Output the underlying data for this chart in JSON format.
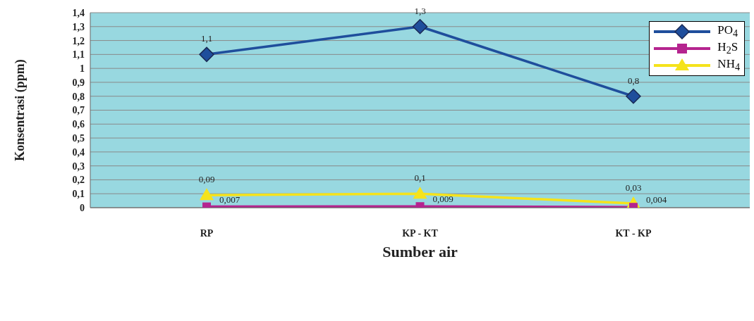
{
  "chart_data": {
    "type": "line",
    "xlabel": "Sumber air",
    "ylabel": "Konsentrasi (ppm)",
    "categories": [
      "RP",
      "KP - KT",
      "KT - KP"
    ],
    "series": [
      {
        "name": "PO$_{4}$",
        "color": "#1f4e9c",
        "marker": "diamond",
        "values": [
          1.1,
          1.3,
          0.8
        ],
        "value_labels": [
          "1,1",
          "1,3",
          "0,8"
        ]
      },
      {
        "name": "H$_{2}$S",
        "color": "#b5248f",
        "marker": "square",
        "values": [
          0.007,
          0.009,
          0.004
        ],
        "value_labels": [
          "0,007",
          "0,009",
          "0,004"
        ]
      },
      {
        "name": "NH$_{4}$",
        "color": "#f5e31c",
        "marker": "triangle",
        "values": [
          0.09,
          0.1,
          0.03
        ],
        "value_labels": [
          "0,09",
          "0,1",
          "0,03"
        ]
      }
    ],
    "ylim": [
      0,
      1.4
    ],
    "yticks": [
      {
        "value": 0,
        "label": "0"
      },
      {
        "value": 0.1,
        "label": "0,1"
      },
      {
        "value": 0.2,
        "label": "0,2"
      },
      {
        "value": 0.3,
        "label": "0,3"
      },
      {
        "value": 0.4,
        "label": "0,4"
      },
      {
        "value": 0.5,
        "label": "0,5"
      },
      {
        "value": 0.6,
        "label": "0,6"
      },
      {
        "value": 0.7,
        "label": "0,7"
      },
      {
        "value": 0.8,
        "label": "0,8"
      },
      {
        "value": 0.9,
        "label": "0,9"
      },
      {
        "value": 1,
        "label": "1"
      },
      {
        "value": 1.1,
        "label": "1,1"
      },
      {
        "value": 1.2,
        "label": "1,2"
      },
      {
        "value": 1.3,
        "label": "1,3"
      },
      {
        "value": 1.4,
        "label": "1,4"
      }
    ],
    "grid": "y",
    "legend": "top right",
    "line_style": "solid"
  }
}
